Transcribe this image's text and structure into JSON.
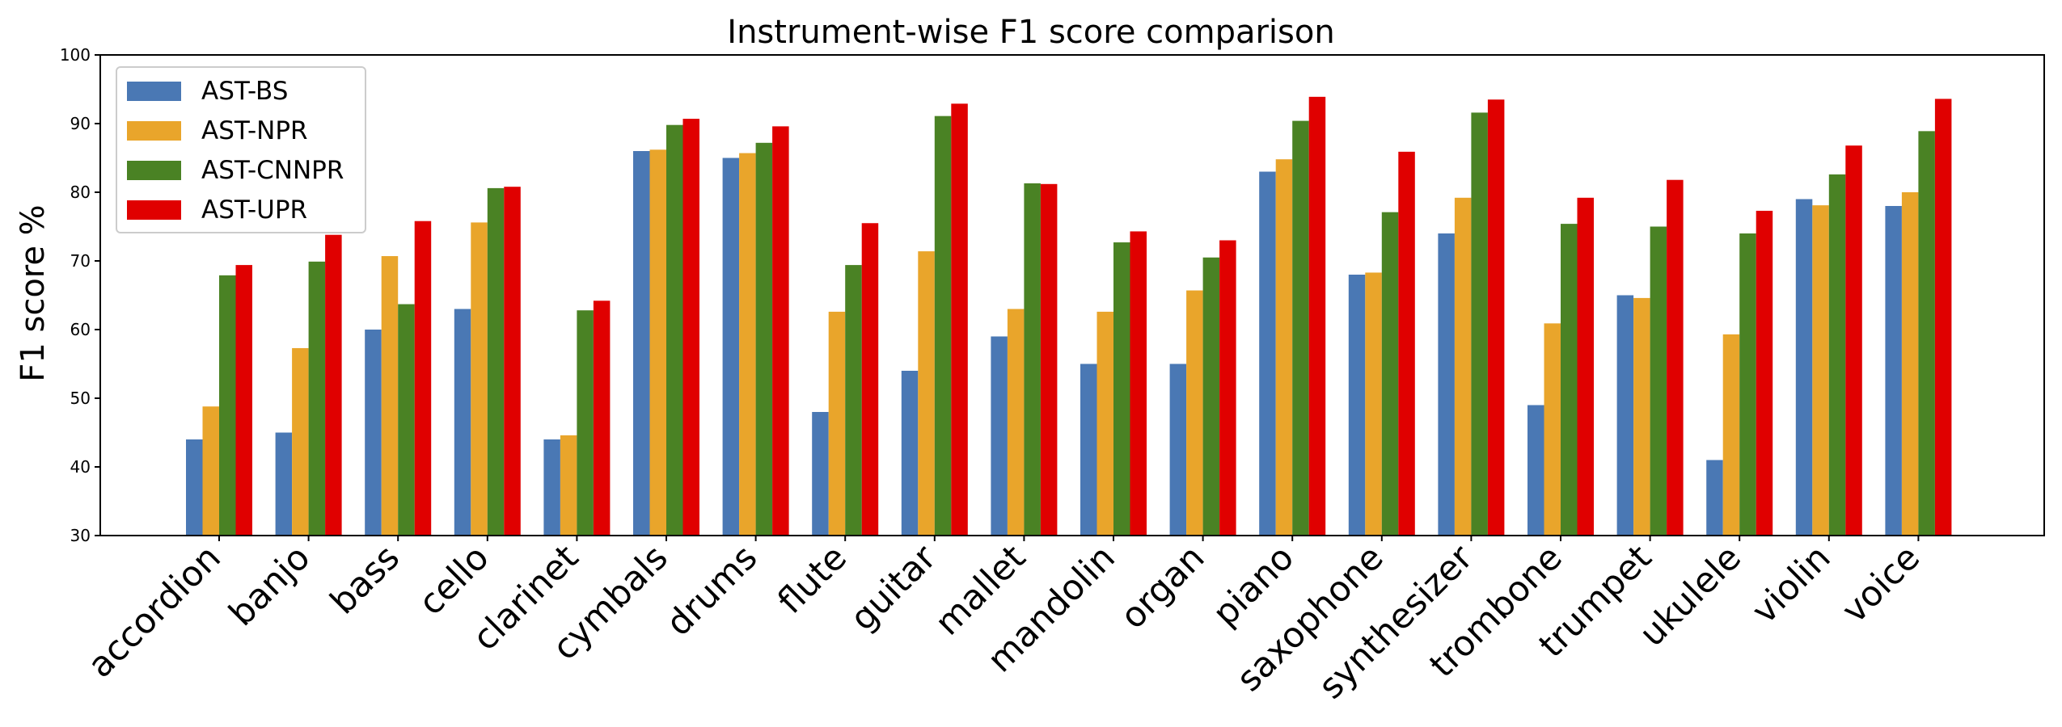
{
  "chart_data": {
    "type": "bar",
    "title": "Instrument-wise F1 score comparison",
    "xlabel": "",
    "ylabel": "F1 score %",
    "ylim": [
      30,
      100
    ],
    "yticks": [
      30,
      40,
      50,
      60,
      70,
      80,
      90,
      100
    ],
    "grid": false,
    "legend_position": "top-left",
    "categories": [
      "accordion",
      "banjo",
      "bass",
      "cello",
      "clarinet",
      "cymbals",
      "drums",
      "flute",
      "guitar",
      "mallet",
      "mandolin",
      "organ",
      "piano",
      "saxophone",
      "synthesizer",
      "trombone",
      "trumpet",
      "ukulele",
      "violin",
      "voice"
    ],
    "series": [
      {
        "name": "AST-BS",
        "color": "#4a78b4",
        "values": [
          44,
          45,
          60,
          63,
          44,
          86,
          85,
          48,
          54,
          59,
          55,
          55,
          83,
          68,
          74,
          49,
          65,
          41,
          79,
          78
        ]
      },
      {
        "name": "AST-NPR",
        "color": "#e9a52b",
        "values": [
          48.8,
          57.3,
          70.7,
          75.6,
          44.6,
          86.2,
          85.7,
          62.6,
          71.4,
          63.0,
          62.6,
          65.7,
          84.8,
          68.3,
          79.2,
          60.9,
          64.6,
          59.3,
          78.1,
          80.0
        ]
      },
      {
        "name": "AST-CNNPR",
        "color": "#4a8224",
        "values": [
          67.9,
          69.9,
          63.7,
          80.6,
          62.8,
          89.8,
          87.2,
          69.4,
          91.1,
          81.3,
          72.7,
          70.5,
          90.4,
          77.1,
          91.6,
          75.4,
          75.0,
          74.0,
          82.6,
          88.9
        ]
      },
      {
        "name": "AST-UPR",
        "color": "#e00000",
        "values": [
          69.4,
          73.8,
          75.8,
          80.8,
          64.2,
          90.7,
          89.6,
          75.5,
          92.9,
          81.2,
          74.3,
          73.0,
          93.9,
          85.9,
          93.5,
          79.2,
          81.8,
          77.3,
          86.8,
          93.6
        ]
      }
    ]
  }
}
